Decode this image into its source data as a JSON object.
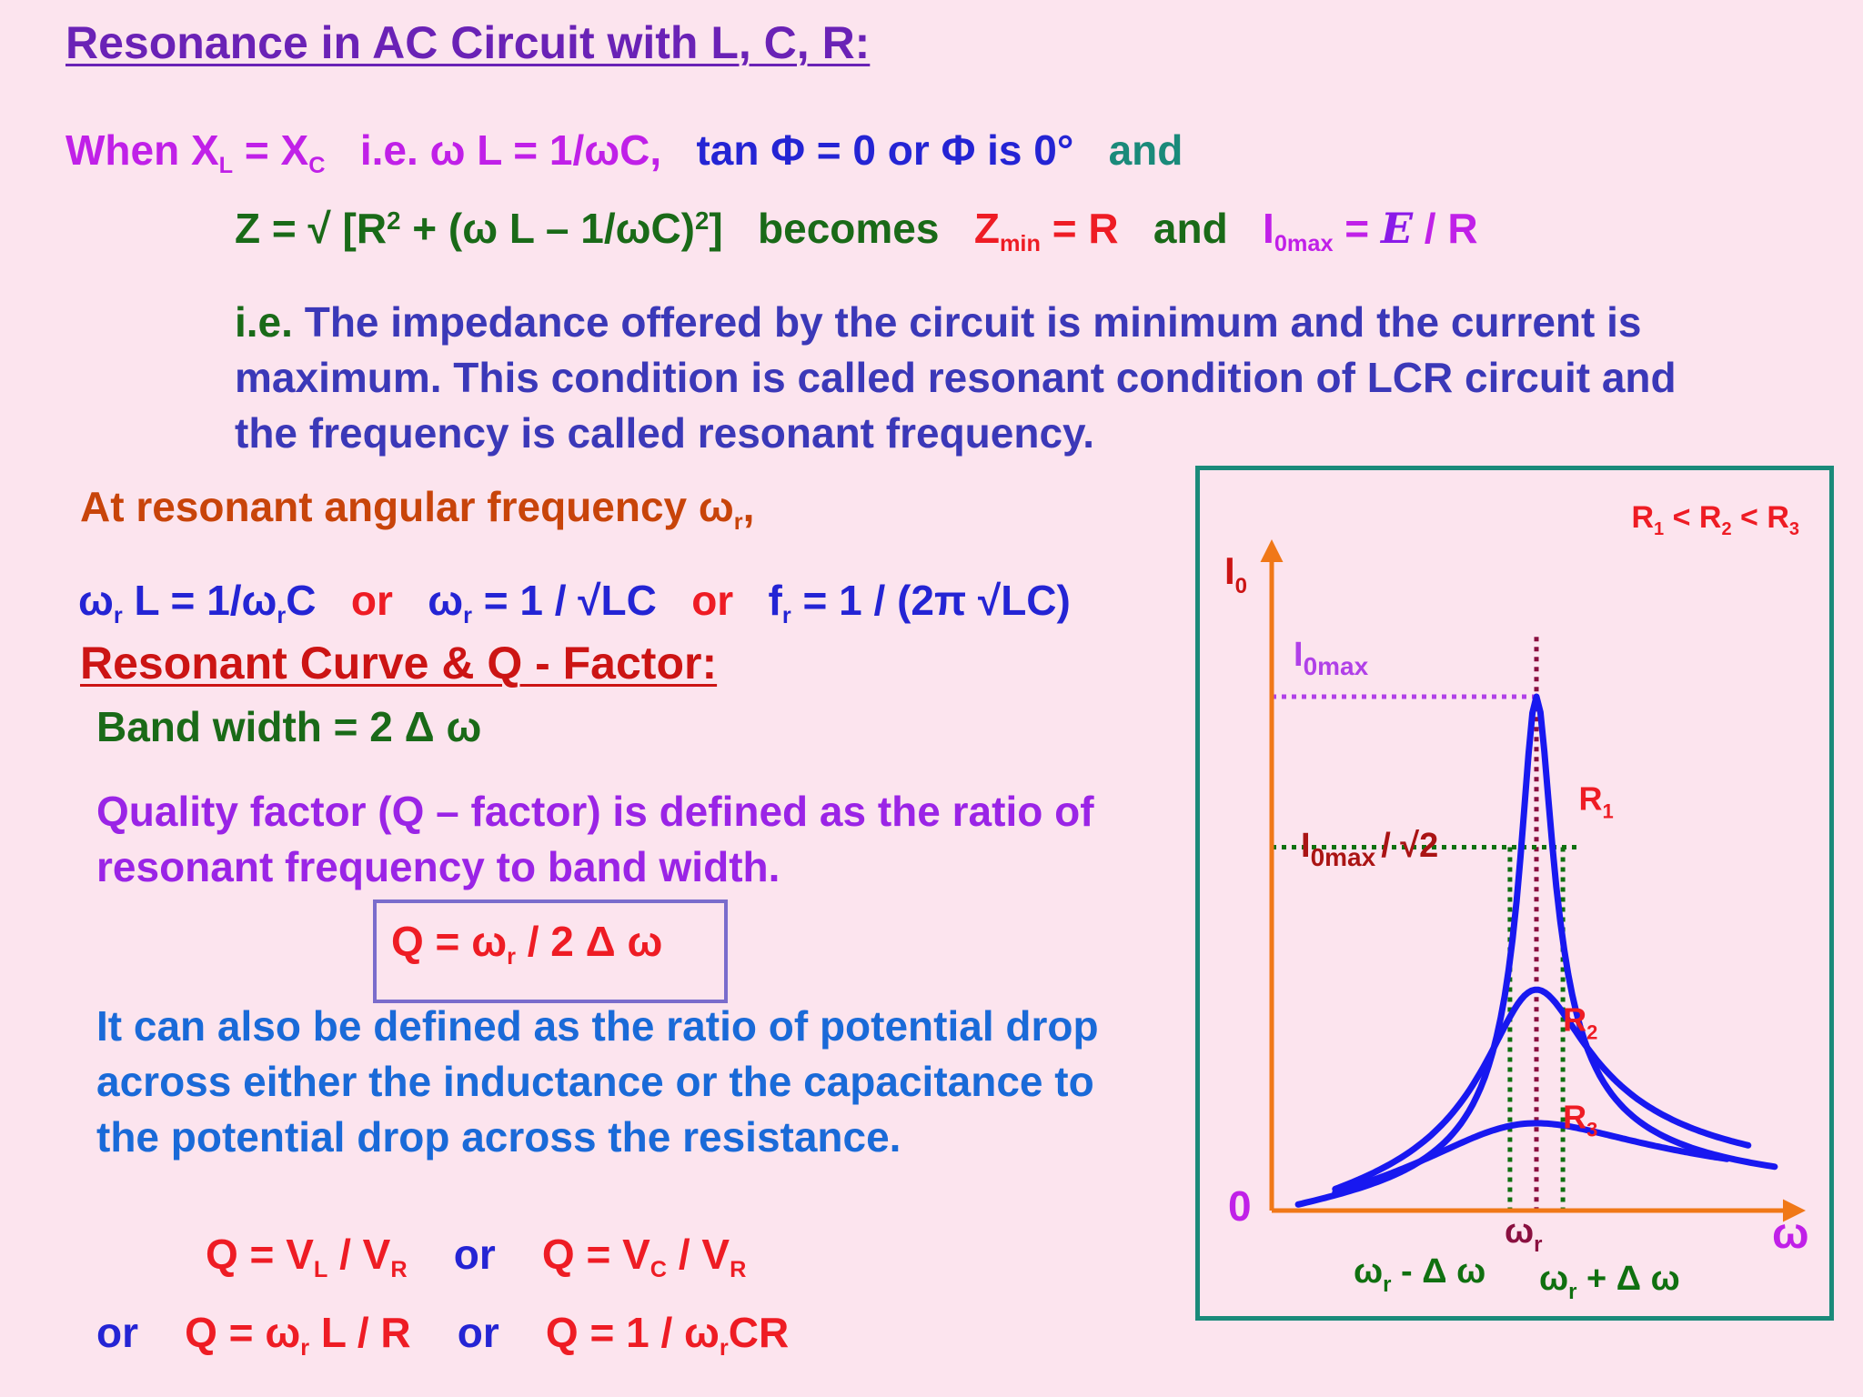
{
  "slide": {
    "title": "Resonance in AC Circuit with L, C, R:",
    "line1": {
      "when": "When X",
      "sub_l": "L",
      "eq": " = X",
      "sub_c": "C",
      "ie": "i.e. ω L = 1/ωC,",
      "tan": "tan Φ = 0  or Φ is 0°",
      "and": "and"
    },
    "line2": {
      "z": "Z = √ [R",
      "sq1": "2",
      "mid": " + (ω L – 1/ωC)",
      "sq2": "2",
      "close": "]",
      "becomes": "becomes",
      "zmin": "Z",
      "zmin_sub": "min",
      "zmin_eq": " = R",
      "and": "and",
      "i0": "I",
      "i0_sub": "0max",
      "i0_eq": " = ",
      "emf": "E",
      "over_r": " / R"
    },
    "para1_ie": "i.e.",
    "para1": " The impedance offered by the circuit is minimum and the current is maximum.  This condition is called resonant condition of LCR circuit and the frequency is called resonant frequency.",
    "at_resonant": "At resonant angular frequency ω",
    "at_resonant_sub": "r",
    "at_resonant_end": ",",
    "wr_line": {
      "a1": "ω",
      "a1s": "r",
      "a2": " L = 1/ω",
      "a2s": "r",
      "a3": "C",
      "or1": "or",
      "b1": "ω",
      "b1s": "r",
      "b2": "  = 1 / √LC",
      "or2": "or",
      "c1": "f",
      "c1s": "r",
      "c2": "  = 1 / (2π √LC)"
    },
    "section2_title": "Resonant Curve & Q - Factor:",
    "bandwidth": "Band width = 2 Δ ω",
    "q_definition": "Quality factor (Q – factor) is defined as the ratio of resonant frequency to band width.",
    "q_formula": {
      "a": "Q = ω",
      "s": "r",
      "b": " / 2 Δ ω"
    },
    "para2": "It can also be defined as the ratio of potential drop across either the inductance or the capacitance to the potential drop across the resistance.",
    "qv": {
      "a": "Q = V",
      "as": "L",
      "b": " / V",
      "bs": "R",
      "or": "or",
      "c": "Q = V",
      "cs": "C",
      "d": " / V",
      "ds": "R"
    },
    "qw": {
      "or1": "or",
      "a": "Q = ω",
      "as": "r",
      "b": " L / R",
      "or2": "or",
      "c": "Q = 1 / ω",
      "cs": "r",
      "d": "CR"
    }
  },
  "colors": {
    "background": "#fce4ee",
    "axis": "#f07818",
    "curve": "#1818f0",
    "frame": "#1a8a7a",
    "resonance_line": "#8a1040",
    "i0max_line": "#b040e8",
    "halfpower_line": "#107010"
  },
  "chart_data": {
    "type": "line",
    "title": "",
    "xlabel": "ω",
    "ylabel": "I",
    "ylabel_sub": "0",
    "origin_label": "0",
    "legend_note": {
      "r1": "R",
      "r1s": "1",
      "lt1": " < ",
      "r2": "R",
      "r2s": "2",
      "lt2": " < ",
      "r3": "R",
      "r3s": "3"
    },
    "resonance": {
      "w_r": 0.5,
      "delta_w": 0.05,
      "i0max": 1.0
    },
    "series": [
      {
        "name": "R1",
        "label": "R",
        "sub": "1",
        "peak": 1.0,
        "Q": 8.5,
        "x_start": 0.05,
        "x_end": 0.95
      },
      {
        "name": "R2",
        "label": "R",
        "sub": "2",
        "peak": 0.43,
        "Q": 2.6,
        "x_start": 0.12,
        "x_end": 0.9
      },
      {
        "name": "R3",
        "label": "R",
        "sub": "3",
        "peak": 0.17,
        "Q": 1.2,
        "x_start": 0.12,
        "x_end": 0.86
      }
    ],
    "annotations": {
      "i0max": {
        "a": "I",
        "s": "0max"
      },
      "i0max_root2": {
        "a": "I",
        "s": "0max",
        "b": "/ √2"
      },
      "wr": {
        "a": "ω",
        "s": "r"
      },
      "wr_minus": {
        "a": "ω",
        "s": "r",
        "b": " - Δ ω"
      },
      "wr_plus": {
        "a": "ω",
        "s": "r",
        "b": " + Δ ω"
      }
    },
    "ylim": [
      0,
      1.12
    ],
    "xlim": [
      0,
      1
    ],
    "grid": false
  }
}
